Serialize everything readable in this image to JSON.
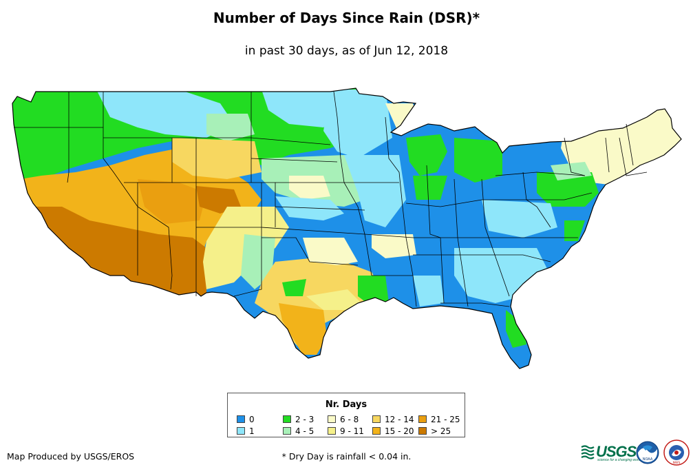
{
  "map": {
    "title": "Number of Days Since Rain (DSR)*",
    "subtitle": "in past 30 days, as of Jun 12, 2018"
  },
  "legend": {
    "title": "Nr. Days",
    "classes": [
      {
        "label": "0",
        "color": "#1e90e8"
      },
      {
        "label": "1",
        "color": "#8ee6fa"
      },
      {
        "label": "2 - 3",
        "color": "#22dc22"
      },
      {
        "label": "4 - 5",
        "color": "#a8f0b8"
      },
      {
        "label": "6 - 8",
        "color": "#fafac8"
      },
      {
        "label": "9 - 11",
        "color": "#f5f08a"
      },
      {
        "label": "12 - 14",
        "color": "#f7d760"
      },
      {
        "label": "15 - 20",
        "color": "#f2b31a"
      },
      {
        "label": "21 - 25",
        "color": "#ea9f10"
      },
      {
        "label": "> 25",
        "color": "#cc7a00"
      }
    ]
  },
  "footer": {
    "credit": "Map Produced by USGS/EROS",
    "footnote": "* Dry Day is rainfall < 0.04 in.",
    "usgs_logo_text": "USGS",
    "usgs_tagline": "science for a changing world",
    "noaa_logo_text": "NOAA",
    "nws_logo_text": "NWS"
  },
  "icons": {
    "usgs": "usgs-logo-icon",
    "noaa": "noaa-logo-icon",
    "nws": "nws-logo-icon"
  }
}
